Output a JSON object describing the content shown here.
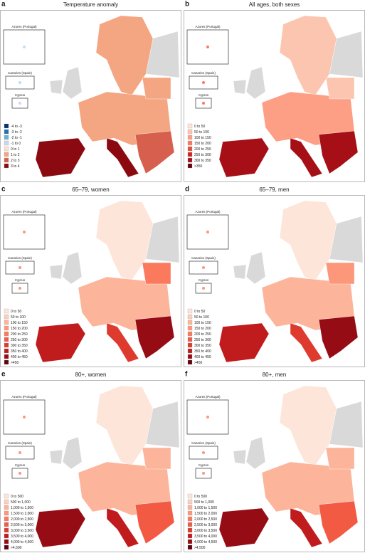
{
  "panels": [
    {
      "letter": "a",
      "title": "Temperature anomaly",
      "insets": [
        "Azores (Portugal)",
        "Canaries (Spain)",
        "Cyprus"
      ],
      "legend": [
        {
          "label": "-4 to -3",
          "color": "#08306b"
        },
        {
          "label": "-3 to -2",
          "color": "#2171b5"
        },
        {
          "label": "-2 to -1",
          "color": "#6baed6"
        },
        {
          "label": "-1 to 0",
          "color": "#c6dbef"
        },
        {
          "label": "0 to 1",
          "color": "#fde0d2"
        },
        {
          "label": "1 to 2",
          "color": "#f4a582"
        },
        {
          "label": "2 to 3",
          "color": "#d6604d"
        },
        {
          "label": "3 to 4",
          "color": "#8b0a12"
        }
      ]
    },
    {
      "letter": "b",
      "title": "All ages, both sexes",
      "insets": [
        "Azores (Portugal)",
        "Canaries (Spain)",
        "Cyprus"
      ],
      "legend": [
        {
          "label": "0 to 50",
          "color": "#fee5d9"
        },
        {
          "label": "50 to 100",
          "color": "#fcc5b0"
        },
        {
          "label": "100 to 150",
          "color": "#fc9f85"
        },
        {
          "label": "150 to 200",
          "color": "#fb7a5e"
        },
        {
          "label": "200 to 250",
          "color": "#ef4b36"
        },
        {
          "label": "250 to 300",
          "color": "#d0221f"
        },
        {
          "label": "300 to 350",
          "color": "#a50f15"
        },
        {
          "label": ">350",
          "color": "#67000d"
        }
      ]
    },
    {
      "letter": "c",
      "title": "65–79, women",
      "insets": [
        "Azores (Portugal)",
        "Canaries (Spain)",
        "Cyprus"
      ],
      "legend": [
        {
          "label": "0 to 50",
          "color": "#fee5d9"
        },
        {
          "label": "50 to 100",
          "color": "#fdd0bd"
        },
        {
          "label": "100 to 150",
          "color": "#fcb49b"
        },
        {
          "label": "150 to 200",
          "color": "#fc977a"
        },
        {
          "label": "200 to 250",
          "color": "#fb7a5e"
        },
        {
          "label": "250 to 300",
          "color": "#f25a43"
        },
        {
          "label": "300 to 350",
          "color": "#de3a2d"
        },
        {
          "label": "350 to 400",
          "color": "#c01b1d"
        },
        {
          "label": "400 to 450",
          "color": "#960c14"
        },
        {
          "label": ">450",
          "color": "#67000d"
        }
      ]
    },
    {
      "letter": "d",
      "title": "65–79, men",
      "insets": [
        "Azores (Portugal)",
        "Canaries (Spain)",
        "Cyprus"
      ],
      "legend": [
        {
          "label": "0 to 50",
          "color": "#fee5d9"
        },
        {
          "label": "50 to 100",
          "color": "#fdd0bd"
        },
        {
          "label": "100 to 150",
          "color": "#fcb49b"
        },
        {
          "label": "150 to 200",
          "color": "#fc977a"
        },
        {
          "label": "200 to 250",
          "color": "#fb7a5e"
        },
        {
          "label": "250 to 300",
          "color": "#f25a43"
        },
        {
          "label": "300 to 350",
          "color": "#de3a2d"
        },
        {
          "label": "350 to 400",
          "color": "#c01b1d"
        },
        {
          "label": "400 to 450",
          "color": "#960c14"
        },
        {
          "label": ">450",
          "color": "#67000d"
        }
      ]
    },
    {
      "letter": "e",
      "title": "80+, women",
      "insets": [
        "Azores (Portugal)",
        "Canaries (Spain)",
        "Cyprus"
      ],
      "legend": [
        {
          "label": "0 to 500",
          "color": "#fee5d9"
        },
        {
          "label": "500 to 1,000",
          "color": "#fdd0bd"
        },
        {
          "label": "1,000 to 1,500",
          "color": "#fcb49b"
        },
        {
          "label": "1,500 to 2,000",
          "color": "#fc977a"
        },
        {
          "label": "2,000 to 2,500",
          "color": "#fb7a5e"
        },
        {
          "label": "2,500 to 3,000",
          "color": "#f25a43"
        },
        {
          "label": "3,000 to 3,500",
          "color": "#de3a2d"
        },
        {
          "label": "3,500 to 4,000",
          "color": "#c01b1d"
        },
        {
          "label": "4,000 to 4,500",
          "color": "#960c14"
        },
        {
          "label": ">4,500",
          "color": "#67000d"
        }
      ]
    },
    {
      "letter": "f",
      "title": "80+, men",
      "insets": [
        "Azores (Portugal)",
        "Canaries (Spain)",
        "Cyprus"
      ],
      "legend": [
        {
          "label": "0 to 500",
          "color": "#fee5d9"
        },
        {
          "label": "500 to 1,000",
          "color": "#fdd0bd"
        },
        {
          "label": "1,000 to 1,500",
          "color": "#fcb49b"
        },
        {
          "label": "1,500 to 2,000",
          "color": "#fc977a"
        },
        {
          "label": "2,000 to 2,500",
          "color": "#fb7a5e"
        },
        {
          "label": "2,500 to 3,000",
          "color": "#f25a43"
        },
        {
          "label": "3,000 to 3,500",
          "color": "#de3a2d"
        },
        {
          "label": "3,500 to 4,000",
          "color": "#c01b1d"
        },
        {
          "label": "4,000 to 4,500",
          "color": "#960c14"
        },
        {
          "label": ">4,500",
          "color": "#67000d"
        }
      ]
    }
  ]
}
